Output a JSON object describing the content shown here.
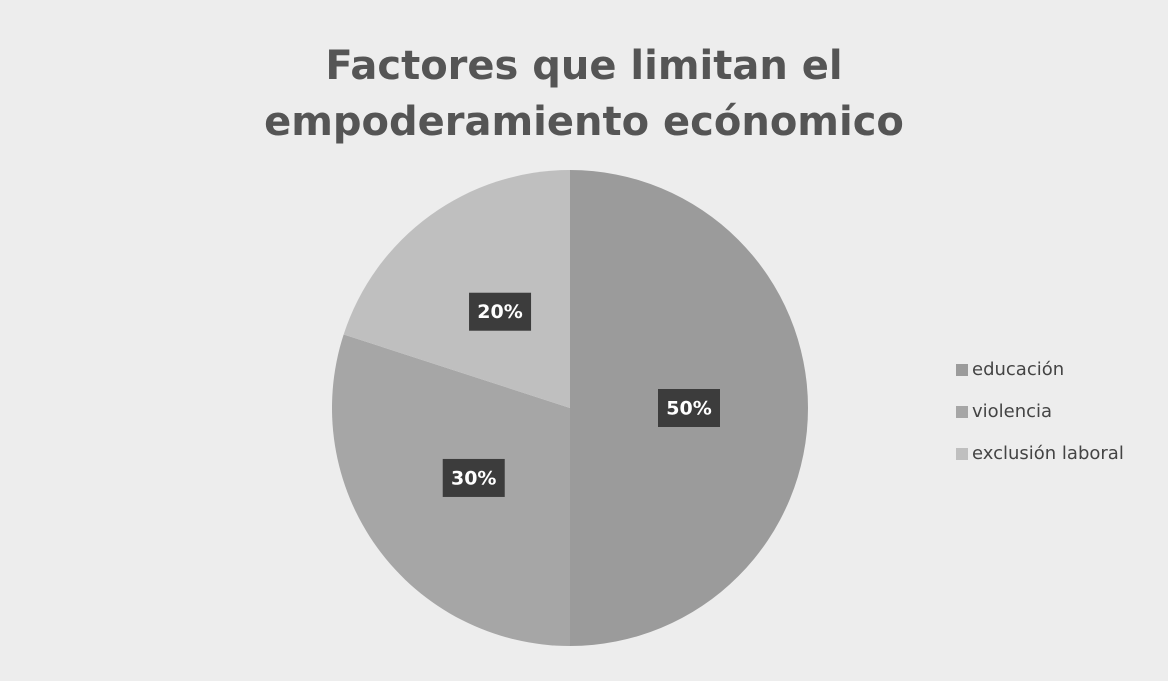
{
  "chart_data": {
    "type": "pie",
    "title": "Factores que limitan el empoderamiento ecónomico",
    "categories": [
      "educación",
      "violencia",
      "exclusión laboral"
    ],
    "values": [
      50,
      30,
      20
    ],
    "value_labels": [
      "50%",
      "30%",
      "20%"
    ],
    "colors": [
      "#9b9b9b",
      "#a6a6a6",
      "#bfbfbf"
    ],
    "legend": "right"
  }
}
